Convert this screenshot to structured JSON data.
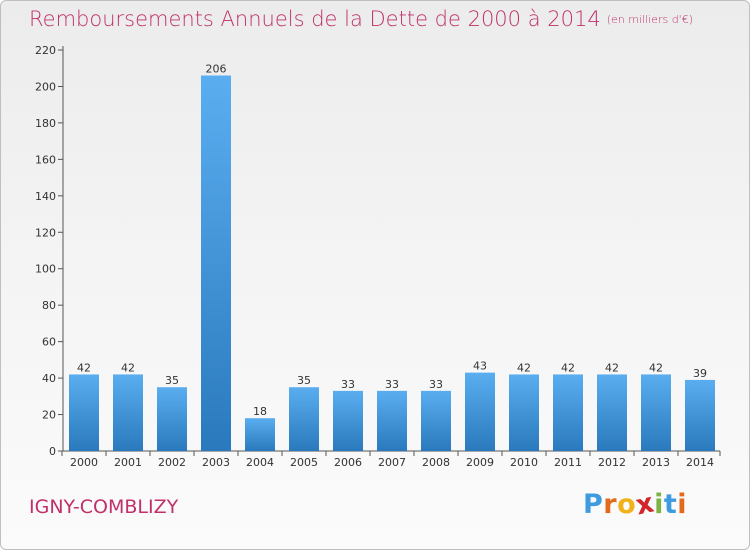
{
  "header": {
    "title": "Remboursements Annuels de la Dette de 2000 à 2014",
    "subtitle": "(en milliers d'€)"
  },
  "footer": {
    "town": "IGNY-COMBLIZY",
    "logo_letters": [
      "P",
      "r",
      "o",
      "x",
      "i",
      "t",
      "i"
    ]
  },
  "colors": {
    "title": "#c0306a",
    "bar_top": "#5aaef0",
    "bar_bottom": "#2a79bd",
    "logo": [
      "#3f9be0",
      "#e36a1d",
      "#f0b21a",
      "#d3262a",
      "#7cb342",
      "#3f9be0",
      "#e36a1d"
    ]
  },
  "chart_data": {
    "type": "bar",
    "title": "Remboursements Annuels de la Dette de 2000 à 2014",
    "subtitle": "(en milliers d'€)",
    "categories": [
      "2000",
      "2001",
      "2002",
      "2003",
      "2004",
      "2005",
      "2006",
      "2007",
      "2008",
      "2009",
      "2010",
      "2011",
      "2012",
      "2013",
      "2014"
    ],
    "values": [
      42,
      42,
      35,
      206,
      18,
      35,
      33,
      33,
      33,
      43,
      42,
      42,
      42,
      42,
      39
    ],
    "yticks": [
      0,
      20,
      40,
      60,
      80,
      100,
      120,
      140,
      160,
      180,
      200,
      220
    ],
    "ylim": [
      0,
      220
    ],
    "xlabel": "",
    "ylabel": "",
    "grid": false,
    "legend": "none"
  }
}
